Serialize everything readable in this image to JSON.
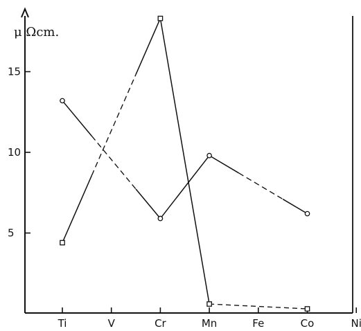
{
  "chart_data": {
    "type": "line",
    "title": "",
    "xlabel": "",
    "ylabel": "μ Ωcm.",
    "categories": [
      "Ti",
      "V",
      "Cr",
      "Mn",
      "Fe",
      "Co",
      "Ni"
    ],
    "ylim": [
      0,
      18.5
    ],
    "yticks": [
      5,
      10,
      15
    ],
    "grid": false,
    "series": [
      {
        "marker": "circle",
        "points": [
          {
            "x": "Ti",
            "y": 13.2
          },
          {
            "x": "Cr",
            "y": 5.9
          },
          {
            "x": "Mn",
            "y": 9.8
          },
          {
            "x": "Co",
            "y": 6.2
          }
        ],
        "segment_styles": [
          "dashed-in-middle",
          "solid",
          "dashed-in-middle"
        ]
      },
      {
        "marker": "square",
        "points": [
          {
            "x": "Ti",
            "y": 4.4
          },
          {
            "x": "Cr",
            "y": 18.3
          },
          {
            "x": "Mn",
            "y": 0.6
          },
          {
            "x": "Co",
            "y": 0.3
          }
        ],
        "segment_styles": [
          "dashed-in-middle",
          "solid",
          "dashed"
        ]
      }
    ]
  }
}
